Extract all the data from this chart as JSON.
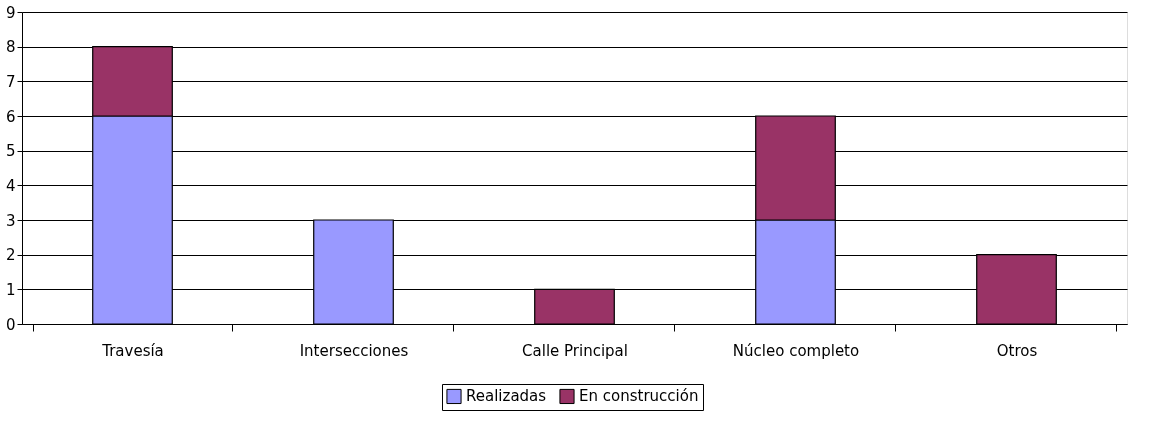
{
  "chart_data": {
    "type": "bar",
    "categories": [
      "Travesía",
      "Intersecciones",
      "Calle Principal",
      "Núcleo completo",
      "Otros"
    ],
    "series": [
      {
        "name": "Realizadas",
        "color": "#9999ff",
        "values": [
          6,
          3,
          0,
          3,
          0
        ]
      },
      {
        "name": "En construcción",
        "color": "#993366",
        "values": [
          2,
          0,
          1,
          3,
          2
        ]
      }
    ],
    "stacked": true,
    "ylim": [
      0,
      9
    ],
    "yticks": [
      0,
      1,
      2,
      3,
      4,
      5,
      6,
      7,
      8,
      9
    ],
    "grid": "y",
    "legend": "bottom"
  }
}
